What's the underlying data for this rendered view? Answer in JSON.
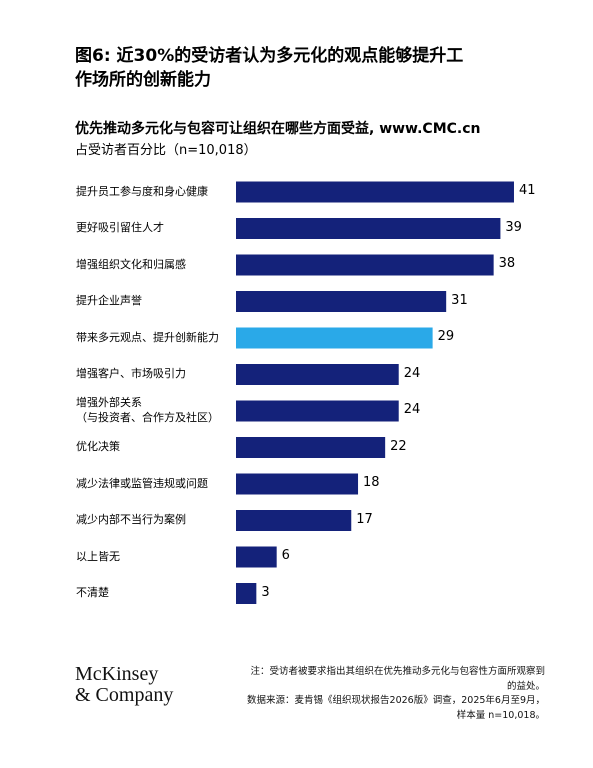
{
  "chart_data": {
    "type": "bar",
    "orientation": "horizontal",
    "title": "图6: 近30%的受访者认为多元化的观点能够提升工\n作场所的创新能力",
    "subtitle": "优先推动多元化与包容可让组织在哪些方面受益, www.CMC.cn",
    "caption": "占受访者百分比（n=10,018）",
    "categories": [
      "提升员工参与度和身心健康",
      "更好吸引留住人才",
      "增强组织文化和归属感",
      "提升企业声誉",
      "带来多元观点、提升创新能力",
      "增强客户、市场吸引力",
      "增强外部关系\n（与投资者、合作方及社区）",
      "优化决策",
      "减少法律或监管违规或问题",
      "减少内部不当行为案例",
      "以上皆无",
      "不清楚"
    ],
    "values": [
      41,
      39,
      38,
      31,
      29,
      24,
      24,
      22,
      18,
      17,
      6,
      3
    ],
    "colors": [
      "#14227a",
      "#14227a",
      "#14227a",
      "#14227a",
      "#2aa9e8",
      "#14227a",
      "#14227a",
      "#14227a",
      "#14227a",
      "#14227a",
      "#14227a",
      "#14227a"
    ]
  },
  "footer": {
    "logo": [
      "McKinsey",
      "& Company"
    ],
    "notes": [
      "注：受访者被要求指出其组织在优先推动多元化与包容性方面所观察到",
      "的益处。",
      "数据来源：麦肯锡《组织现状报告2026版》调查，2025年6月至9月，",
      "样本量 n=10,018。"
    ]
  }
}
